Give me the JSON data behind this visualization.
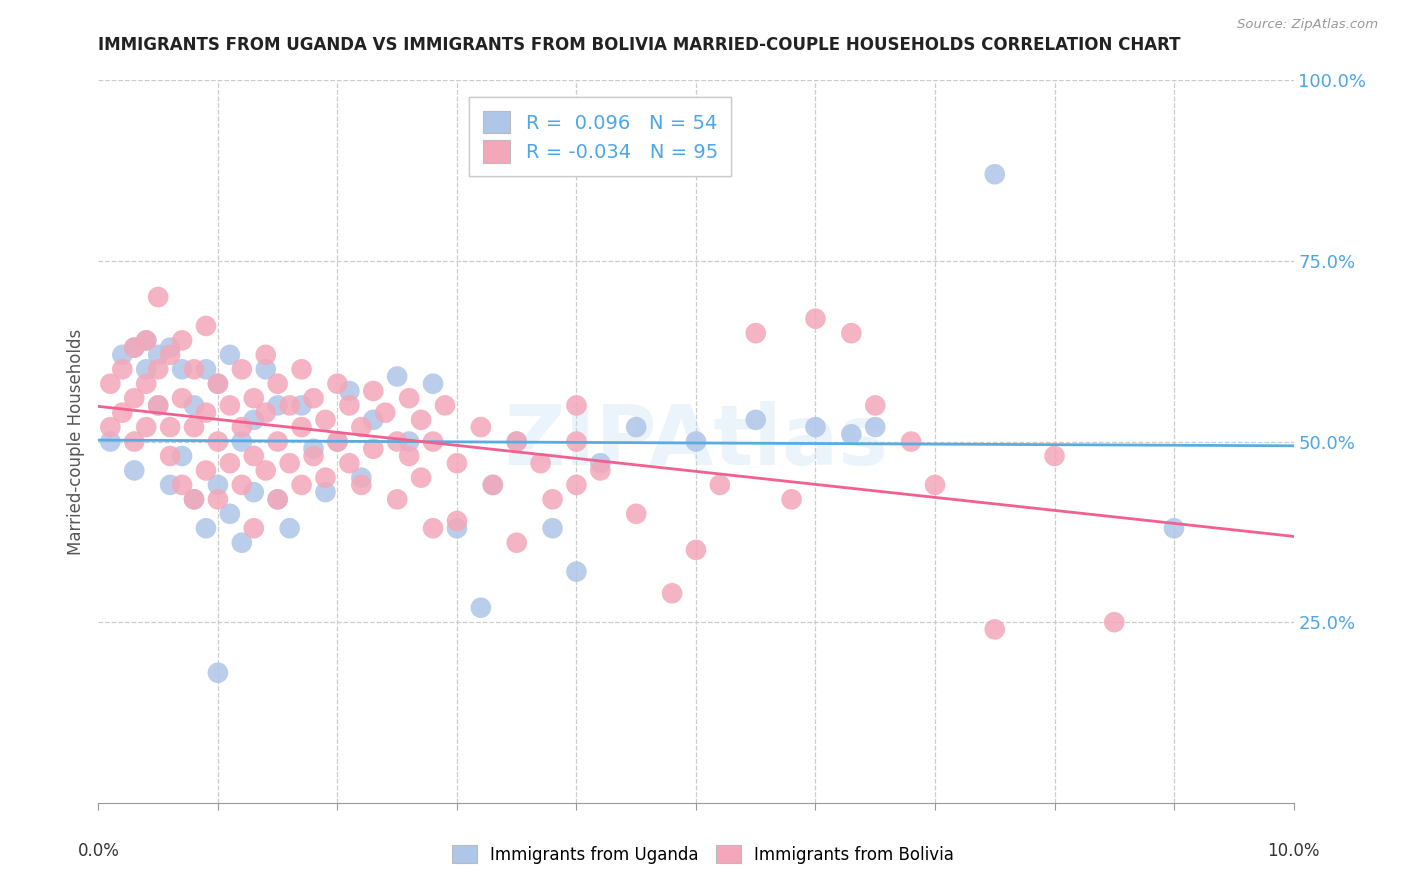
{
  "title": "IMMIGRANTS FROM UGANDA VS IMMIGRANTS FROM BOLIVIA MARRIED-COUPLE HOUSEHOLDS CORRELATION CHART",
  "source": "Source: ZipAtlas.com",
  "ylabel": "Married-couple Households",
  "ylim": [
    0.0,
    1.0
  ],
  "xlim": [
    0.0,
    0.1
  ],
  "ytick_vals": [
    0.25,
    0.5,
    0.75,
    1.0
  ],
  "ytick_labels": [
    "25.0%",
    "50.0%",
    "75.0%",
    "100.0%"
  ],
  "color_uganda": "#aec6e8",
  "color_bolivia": "#f4a7b9",
  "color_uganda_line": "#5aace0",
  "color_bolivia_line": "#f06090",
  "color_ticks": "#4da6e8",
  "color_title": "#222222",
  "watermark": "ZIPAtlas",
  "uganda_R": 0.096,
  "bolivia_R": -0.034,
  "uganda_N": 54,
  "bolivia_N": 95,
  "legend_uganda": "R =  0.096   N = 54",
  "legend_bolivia": "R = -0.034   N = 95",
  "legend_label_uganda": "Immigrants from Uganda",
  "legend_label_bolivia": "Immigrants from Bolivia",
  "uganda_points": [
    [
      0.001,
      0.5
    ],
    [
      0.002,
      0.62
    ],
    [
      0.003,
      0.63
    ],
    [
      0.003,
      0.46
    ],
    [
      0.004,
      0.64
    ],
    [
      0.004,
      0.6
    ],
    [
      0.005,
      0.62
    ],
    [
      0.005,
      0.55
    ],
    [
      0.006,
      0.63
    ],
    [
      0.006,
      0.44
    ],
    [
      0.007,
      0.6
    ],
    [
      0.007,
      0.48
    ],
    [
      0.008,
      0.55
    ],
    [
      0.008,
      0.42
    ],
    [
      0.009,
      0.6
    ],
    [
      0.009,
      0.38
    ],
    [
      0.01,
      0.58
    ],
    [
      0.01,
      0.44
    ],
    [
      0.011,
      0.62
    ],
    [
      0.011,
      0.4
    ],
    [
      0.012,
      0.5
    ],
    [
      0.012,
      0.36
    ],
    [
      0.013,
      0.53
    ],
    [
      0.013,
      0.43
    ],
    [
      0.014,
      0.6
    ],
    [
      0.015,
      0.55
    ],
    [
      0.015,
      0.42
    ],
    [
      0.016,
      0.38
    ],
    [
      0.017,
      0.55
    ],
    [
      0.018,
      0.49
    ],
    [
      0.019,
      0.43
    ],
    [
      0.02,
      0.5
    ],
    [
      0.021,
      0.57
    ],
    [
      0.022,
      0.45
    ],
    [
      0.023,
      0.53
    ],
    [
      0.025,
      0.59
    ],
    [
      0.026,
      0.5
    ],
    [
      0.028,
      0.58
    ],
    [
      0.03,
      0.38
    ],
    [
      0.032,
      0.27
    ],
    [
      0.033,
      0.44
    ],
    [
      0.035,
      0.5
    ],
    [
      0.038,
      0.38
    ],
    [
      0.04,
      0.32
    ],
    [
      0.042,
      0.47
    ],
    [
      0.045,
      0.52
    ],
    [
      0.05,
      0.5
    ],
    [
      0.055,
      0.53
    ],
    [
      0.06,
      0.52
    ],
    [
      0.063,
      0.51
    ],
    [
      0.065,
      0.52
    ],
    [
      0.075,
      0.87
    ],
    [
      0.09,
      0.38
    ],
    [
      0.01,
      0.18
    ]
  ],
  "bolivia_points": [
    [
      0.001,
      0.52
    ],
    [
      0.001,
      0.58
    ],
    [
      0.002,
      0.54
    ],
    [
      0.002,
      0.6
    ],
    [
      0.003,
      0.5
    ],
    [
      0.003,
      0.56
    ],
    [
      0.003,
      0.63
    ],
    [
      0.004,
      0.52
    ],
    [
      0.004,
      0.58
    ],
    [
      0.004,
      0.64
    ],
    [
      0.005,
      0.6
    ],
    [
      0.005,
      0.55
    ],
    [
      0.005,
      0.7
    ],
    [
      0.006,
      0.52
    ],
    [
      0.006,
      0.62
    ],
    [
      0.006,
      0.48
    ],
    [
      0.007,
      0.56
    ],
    [
      0.007,
      0.64
    ],
    [
      0.007,
      0.44
    ],
    [
      0.008,
      0.6
    ],
    [
      0.008,
      0.52
    ],
    [
      0.008,
      0.42
    ],
    [
      0.009,
      0.54
    ],
    [
      0.009,
      0.46
    ],
    [
      0.009,
      0.66
    ],
    [
      0.01,
      0.58
    ],
    [
      0.01,
      0.5
    ],
    [
      0.01,
      0.42
    ],
    [
      0.011,
      0.55
    ],
    [
      0.011,
      0.47
    ],
    [
      0.012,
      0.6
    ],
    [
      0.012,
      0.52
    ],
    [
      0.012,
      0.44
    ],
    [
      0.013,
      0.56
    ],
    [
      0.013,
      0.48
    ],
    [
      0.013,
      0.38
    ],
    [
      0.014,
      0.62
    ],
    [
      0.014,
      0.54
    ],
    [
      0.014,
      0.46
    ],
    [
      0.015,
      0.58
    ],
    [
      0.015,
      0.5
    ],
    [
      0.015,
      0.42
    ],
    [
      0.016,
      0.55
    ],
    [
      0.016,
      0.47
    ],
    [
      0.017,
      0.6
    ],
    [
      0.017,
      0.52
    ],
    [
      0.017,
      0.44
    ],
    [
      0.018,
      0.56
    ],
    [
      0.018,
      0.48
    ],
    [
      0.019,
      0.53
    ],
    [
      0.019,
      0.45
    ],
    [
      0.02,
      0.58
    ],
    [
      0.02,
      0.5
    ],
    [
      0.021,
      0.55
    ],
    [
      0.021,
      0.47
    ],
    [
      0.022,
      0.52
    ],
    [
      0.022,
      0.44
    ],
    [
      0.023,
      0.57
    ],
    [
      0.023,
      0.49
    ],
    [
      0.024,
      0.54
    ],
    [
      0.025,
      0.5
    ],
    [
      0.025,
      0.42
    ],
    [
      0.026,
      0.56
    ],
    [
      0.026,
      0.48
    ],
    [
      0.027,
      0.53
    ],
    [
      0.027,
      0.45
    ],
    [
      0.028,
      0.5
    ],
    [
      0.028,
      0.38
    ],
    [
      0.029,
      0.55
    ],
    [
      0.03,
      0.47
    ],
    [
      0.03,
      0.39
    ],
    [
      0.032,
      0.52
    ],
    [
      0.033,
      0.44
    ],
    [
      0.035,
      0.5
    ],
    [
      0.035,
      0.36
    ],
    [
      0.037,
      0.47
    ],
    [
      0.038,
      0.42
    ],
    [
      0.04,
      0.5
    ],
    [
      0.04,
      0.44
    ],
    [
      0.042,
      0.46
    ],
    [
      0.045,
      0.4
    ],
    [
      0.048,
      0.29
    ],
    [
      0.05,
      0.35
    ],
    [
      0.052,
      0.44
    ],
    [
      0.055,
      0.65
    ],
    [
      0.058,
      0.42
    ],
    [
      0.06,
      0.67
    ],
    [
      0.063,
      0.65
    ],
    [
      0.065,
      0.55
    ],
    [
      0.068,
      0.5
    ],
    [
      0.07,
      0.44
    ],
    [
      0.075,
      0.24
    ],
    [
      0.08,
      0.48
    ],
    [
      0.085,
      0.25
    ],
    [
      0.04,
      0.55
    ]
  ]
}
